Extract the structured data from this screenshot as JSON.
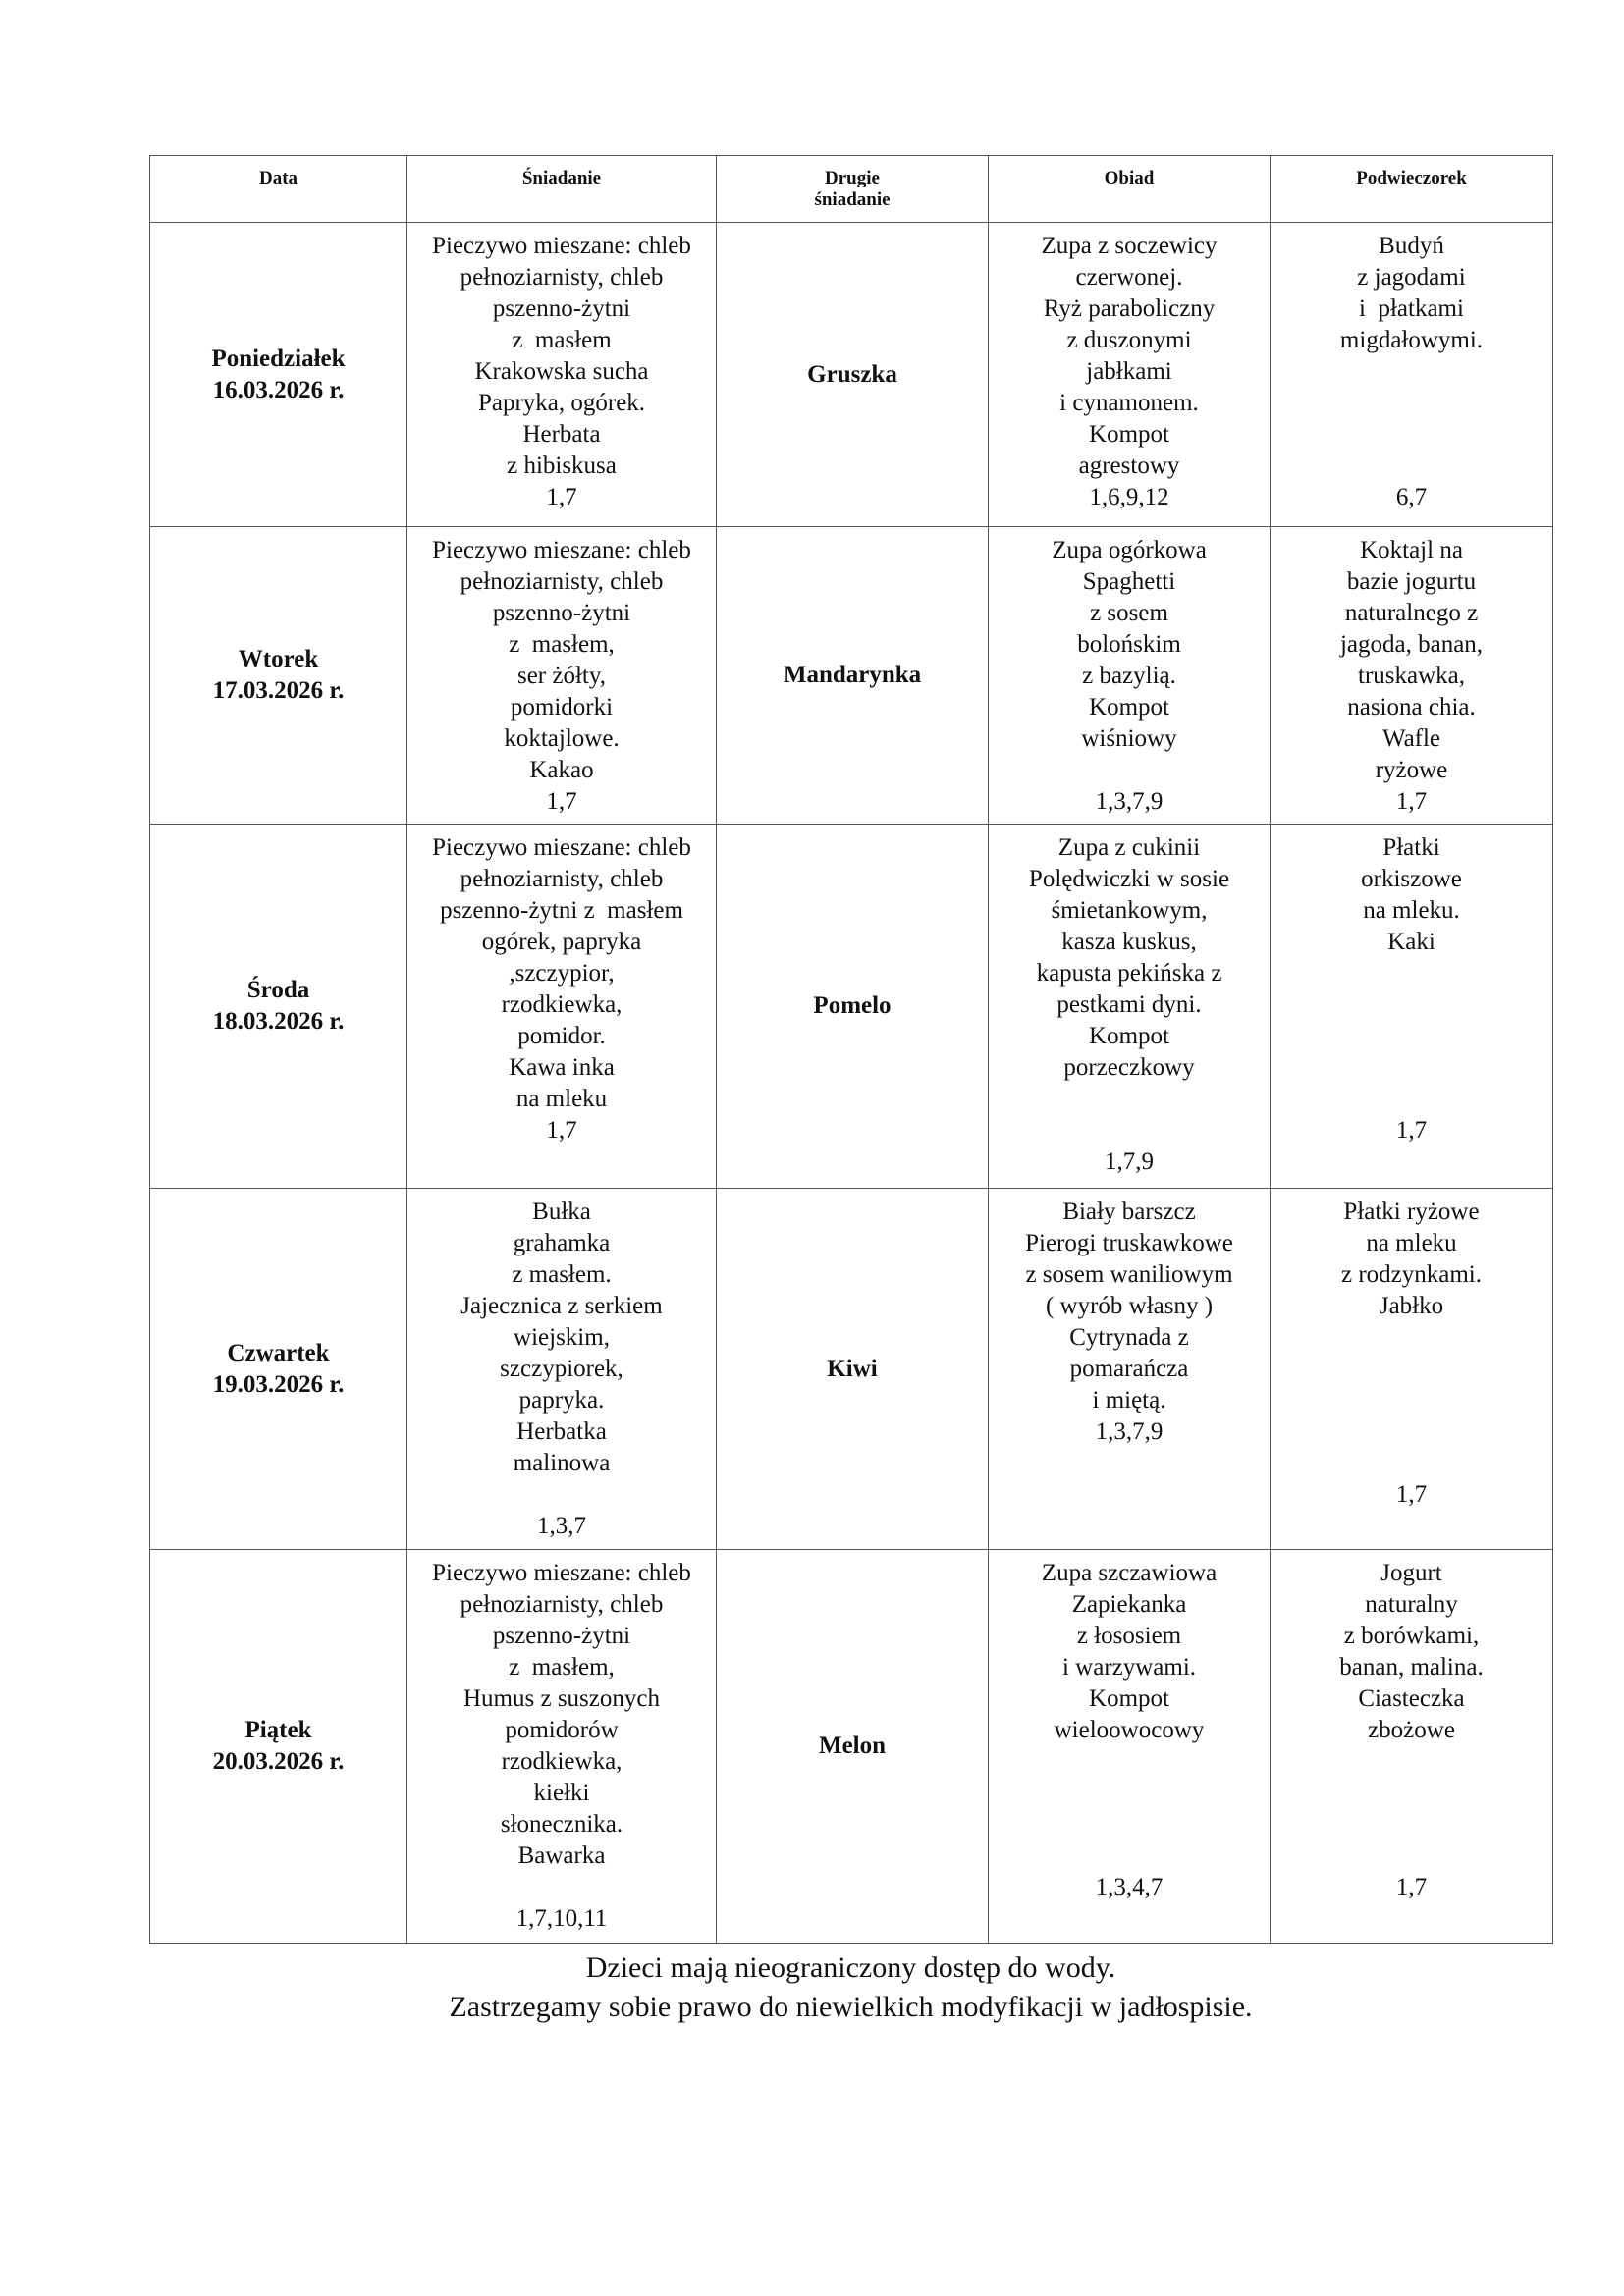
{
  "headers": [
    "Data",
    "Śniadanie",
    "Drugie\nśniadanie",
    "Obiad",
    "Podwieczorek"
  ],
  "rows": [
    {
      "day": "Poniedziałek",
      "date": "16.03.2026 r.",
      "sniadanie": [
        "Pieczywo mieszane: chleb",
        "pełnoziarnisty, chleb",
        "pszenno-żytni",
        "z  masłem",
        "Krakowska sucha",
        "Papryka, ogórek.",
        "Herbata",
        "z hibiskusa",
        "1,7"
      ],
      "drugie": "Gruszka",
      "obiad": [
        "Zupa z soczewicy",
        "czerwonej.",
        "Ryż paraboliczny",
        "z duszonymi",
        "jabłkami",
        "i cynamonem.",
        "Kompot",
        "agrestowy",
        "1,6,9,12"
      ],
      "podwieczorek": [
        "Budyń",
        "z jagodami",
        "i  płatkami",
        "migdałowymi.",
        "",
        "",
        "",
        "",
        "6,7"
      ]
    },
    {
      "day": "Wtorek",
      "date": "17.03.2026 r.",
      "sniadanie": [
        "Pieczywo mieszane: chleb",
        "pełnoziarnisty, chleb",
        "pszenno-żytni",
        "z  masłem,",
        "ser żółty,",
        "pomidorki",
        "koktajlowe.",
        "Kakao",
        "1,7"
      ],
      "drugie": "Mandarynka",
      "obiad": [
        "Zupa ogórkowa",
        "Spaghetti",
        "z sosem",
        "bolońskim",
        "z bazylią.",
        "Kompot",
        "wiśniowy",
        "",
        "1,3,7,9"
      ],
      "podwieczorek": [
        "Koktajl na",
        "bazie jogurtu",
        "naturalnego z",
        "jagoda, banan,",
        "truskawka,",
        "nasiona chia.",
        "Wafle",
        "ryżowe",
        "1,7"
      ]
    },
    {
      "day": "Środa",
      "date": "18.03.2026 r.",
      "sniadanie": [
        "Pieczywo mieszane: chleb",
        "pełnoziarnisty, chleb",
        "pszenno-żytni z  masłem",
        "ogórek, papryka",
        ",szczypior,",
        "rzodkiewka,",
        "pomidor.",
        "Kawa inka",
        "na mleku",
        "1,7"
      ],
      "drugie": "Pomelo",
      "obiad": [
        "Zupa z cukinii",
        "Polędwiczki w sosie",
        "śmietankowym,",
        "kasza kuskus,",
        "kapusta pekińska z",
        "pestkami dyni.",
        "Kompot",
        "porzeczkowy",
        "",
        "",
        "1,7,9"
      ],
      "podwieczorek": [
        "Płatki",
        "orkiszowe",
        "na mleku.",
        "Kaki",
        "",
        "",
        "",
        "",
        "",
        "1,7"
      ]
    },
    {
      "day": "Czwartek",
      "date": "19.03.2026 r.",
      "sniadanie": [
        "Bułka",
        "grahamka",
        "z masłem.",
        "Jajecznica z serkiem",
        "wiejskim,",
        "szczypiorek,",
        "papryka.",
        "Herbatka",
        "malinowa",
        "",
        "1,3,7"
      ],
      "drugie": "Kiwi",
      "obiad": [
        "Biały barszcz",
        "Pierogi truskawkowe",
        "z sosem waniliowym",
        "( wyrób własny )",
        "Cytrynada z",
        "pomarańcza",
        "i miętą.",
        "1,3,7,9"
      ],
      "podwieczorek": [
        "Płatki ryżowe",
        "na mleku",
        "z rodzynkami.",
        "Jabłko",
        "",
        "",
        "",
        "",
        "",
        "1,7"
      ]
    },
    {
      "day": "Piątek",
      "date": "20.03.2026 r.",
      "sniadanie": [
        "Pieczywo mieszane: chleb",
        "pełnoziarnisty, chleb",
        "pszenno-żytni",
        "z  masłem,",
        "Humus z suszonych",
        "pomidorów",
        "rzodkiewka,",
        "kiełki",
        "słonecznika.",
        "Bawarka",
        "",
        "1,7,10,11"
      ],
      "drugie": "Melon",
      "obiad": [
        "Zupa szczawiowa",
        "Zapiekanka",
        "z łososiem",
        "i warzywami.",
        "Kompot",
        "wieloowocowy",
        "",
        "",
        "",
        "",
        "1,3,4,7"
      ],
      "podwieczorek": [
        "Jogurt",
        "naturalny",
        "z borówkami,",
        "banan, malina.",
        "Ciasteczka",
        "zbożowe",
        "",
        "",
        "",
        "",
        "1,7"
      ]
    }
  ],
  "footer": [
    "Dzieci mają nieograniczony dostęp do wody.",
    "Zastrzegamy sobie prawo do niewielkich modyfikacji w jadłospisie."
  ]
}
